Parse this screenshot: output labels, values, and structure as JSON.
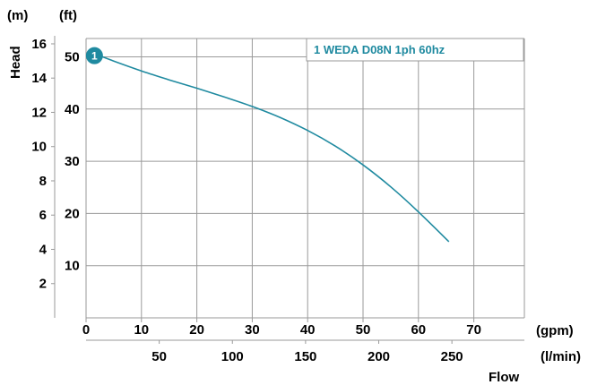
{
  "chart_data": {
    "type": "line",
    "colors": {
      "curve": "#1f8aa0",
      "grid": "#9a9a9a",
      "text": "#000000"
    },
    "units": {
      "head_m": "(m)",
      "head_ft": "(ft)",
      "flow_gpm": "(gpm)",
      "flow_lmin": "(l/min)"
    },
    "ylabel": "Head",
    "xlabel": "Flow",
    "x_gpm": {
      "range": [
        0,
        80
      ],
      "ticks": [
        0,
        10,
        20,
        30,
        40,
        50,
        60,
        70
      ]
    },
    "x_lmin": {
      "ticks": [
        50,
        100,
        150,
        200,
        250
      ]
    },
    "y_ft": {
      "range": [
        0,
        53.5
      ],
      "ticks": [
        10,
        20,
        30,
        40,
        50
      ]
    },
    "y_m": {
      "ticks": [
        2,
        4,
        6,
        8,
        10,
        12,
        14,
        16
      ]
    },
    "grid": true,
    "legend": {
      "placement": "top-right",
      "label": "1 WEDA D08N 1ph 60hz"
    },
    "series": [
      {
        "name": "1 WEDA D08N 1ph 60hz",
        "marker_label": "1",
        "x_gpm": [
          2,
          5,
          10,
          15,
          20,
          25,
          30,
          35,
          40,
          45,
          50,
          55,
          60,
          65.5
        ],
        "head_ft": [
          50.4,
          49.2,
          47.3,
          45.6,
          44.0,
          42.3,
          40.5,
          38.4,
          35.9,
          32.9,
          29.3,
          25.1,
          20.3,
          14.6
        ]
      }
    ]
  }
}
